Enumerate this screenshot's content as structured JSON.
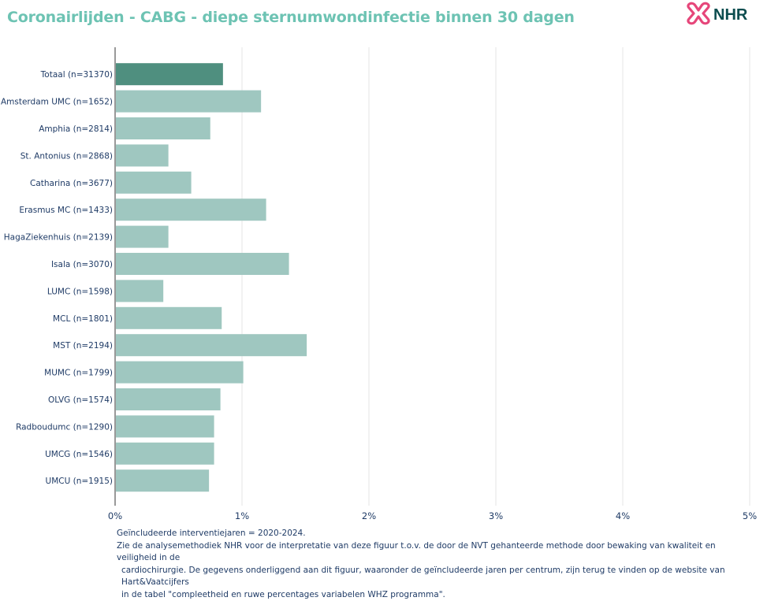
{
  "title": "Coronairlijden - CABG - diepe sternumwondinfectie binnen 30 dagen",
  "logo": {
    "text": "NHR",
    "icon": "nhr-cross-logo-icon"
  },
  "colors": {
    "title": "#6dc3b3",
    "total_bar": "#4f8f7f",
    "center_bar": "#9fc7c0",
    "axis_text": "#1f3b66",
    "grid": "#e6e6e6",
    "logo_pink": "#e6467a",
    "logo_text": "#0c4d4f"
  },
  "chart_data": {
    "type": "bar",
    "orientation": "horizontal",
    "categories": [
      "Totaal (n=31370)",
      "Amsterdam UMC (n=1652)",
      "Amphia (n=2814)",
      "St. Antonius (n=2868)",
      "Catharina (n=3677)",
      "Erasmus MC (n=1433)",
      "HagaZiekenhuis (n=2139)",
      "Isala (n=3070)",
      "LUMC (n=1598)",
      "MCL (n=1801)",
      "MST (n=2194)",
      "MUMC (n=1799)",
      "OLVG (n=1574)",
      "Radboudumc (n=1290)",
      "UMCG (n=1546)",
      "UMCU (n=1915)"
    ],
    "values": [
      0.85,
      1.15,
      0.75,
      0.42,
      0.6,
      1.19,
      0.42,
      1.37,
      0.38,
      0.84,
      1.51,
      1.01,
      0.83,
      0.78,
      0.78,
      0.74
    ],
    "highlight_index": 0,
    "xlim": [
      0,
      5
    ],
    "x_ticks": [
      "0%",
      "1%",
      "2%",
      "3%",
      "4%",
      "5%"
    ],
    "x_tick_values": [
      0,
      1,
      2,
      3,
      4,
      5
    ],
    "unit": "%",
    "grid": true
  },
  "footnote": {
    "line1": "Geïncludeerde interventiejaren = 2020-2024.",
    "line2": "Zie de analysemethodiek NHR voor de interpretatie van deze figuur t.o.v. de door de NVT gehanteerde methode door bewaking van kwaliteit en veiligheid in de",
    "line3": "cardiochirurgie. De gegevens onderliggend aan dit figuur, waaronder de geïncludeerde jaren per centrum, zijn terug te vinden op de website van Hart&Vaatcijfers",
    "line4": "in de tabel \"compleetheid en ruwe percentages variabelen WHZ programma\"."
  }
}
